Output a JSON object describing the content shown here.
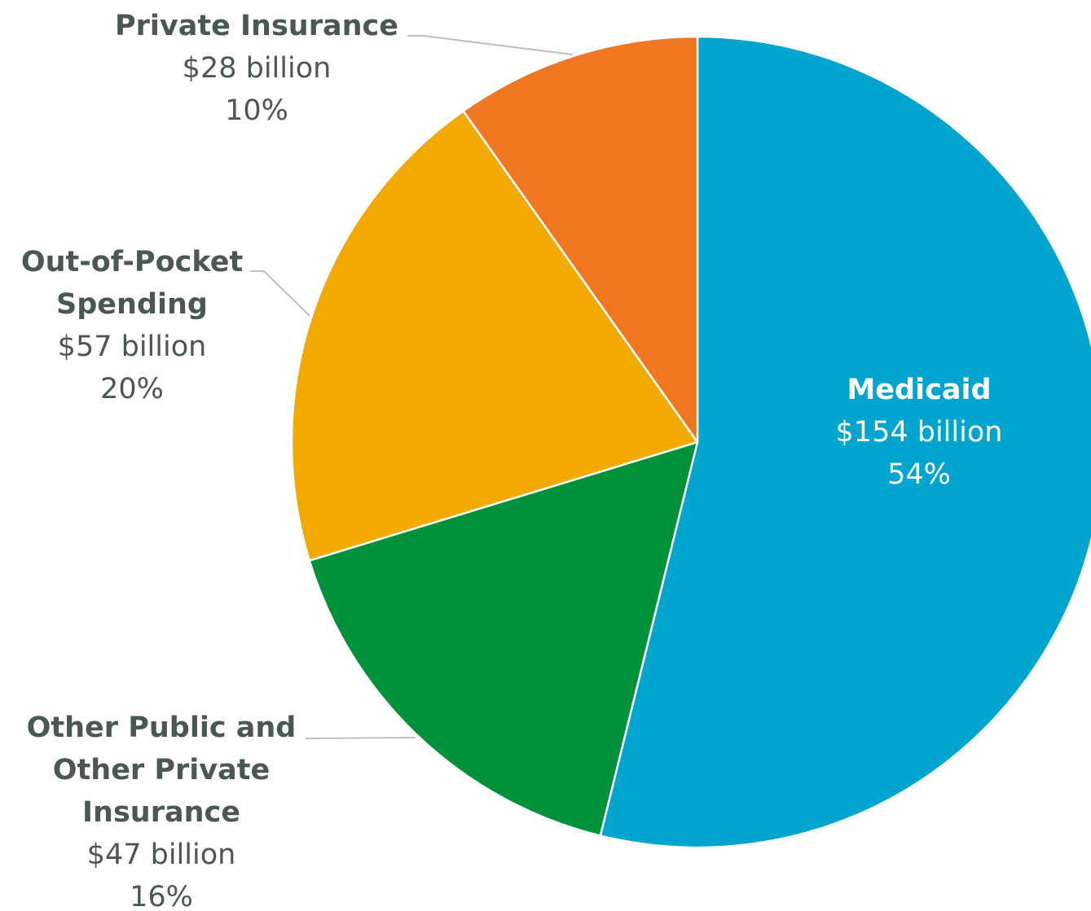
{
  "chart_data": {
    "type": "pie",
    "title": "",
    "start_angle_deg": 0,
    "direction": "clockwise",
    "slices": [
      {
        "name": "Medicaid",
        "name_lines": [
          "Medicaid"
        ],
        "value": 154,
        "value_label": "$154 billion",
        "percent": 54,
        "percent_label": "54%",
        "color": "#00a5cf",
        "label_position": "inside"
      },
      {
        "name": "Other Public and Other Private Insurance",
        "name_lines": [
          "Other Public and",
          "Other Private",
          "Insurance"
        ],
        "value": 47,
        "value_label": "$47 billion",
        "percent": 16,
        "percent_label": "16%",
        "color": "#00913a",
        "label_position": "outside-left"
      },
      {
        "name": "Out-of-Pocket Spending",
        "name_lines": [
          "Out-of-Pocket",
          "Spending"
        ],
        "value": 57,
        "value_label": "$57 billion",
        "percent": 20,
        "percent_label": "20%",
        "color": "#f2a900",
        "label_position": "outside-left"
      },
      {
        "name": "Private Insurance",
        "name_lines": [
          "Private Insurance"
        ],
        "value": 28,
        "value_label": "$28 billion",
        "percent": 10,
        "percent_label": "10%",
        "color": "#f07622",
        "label_position": "outside-top"
      }
    ]
  }
}
